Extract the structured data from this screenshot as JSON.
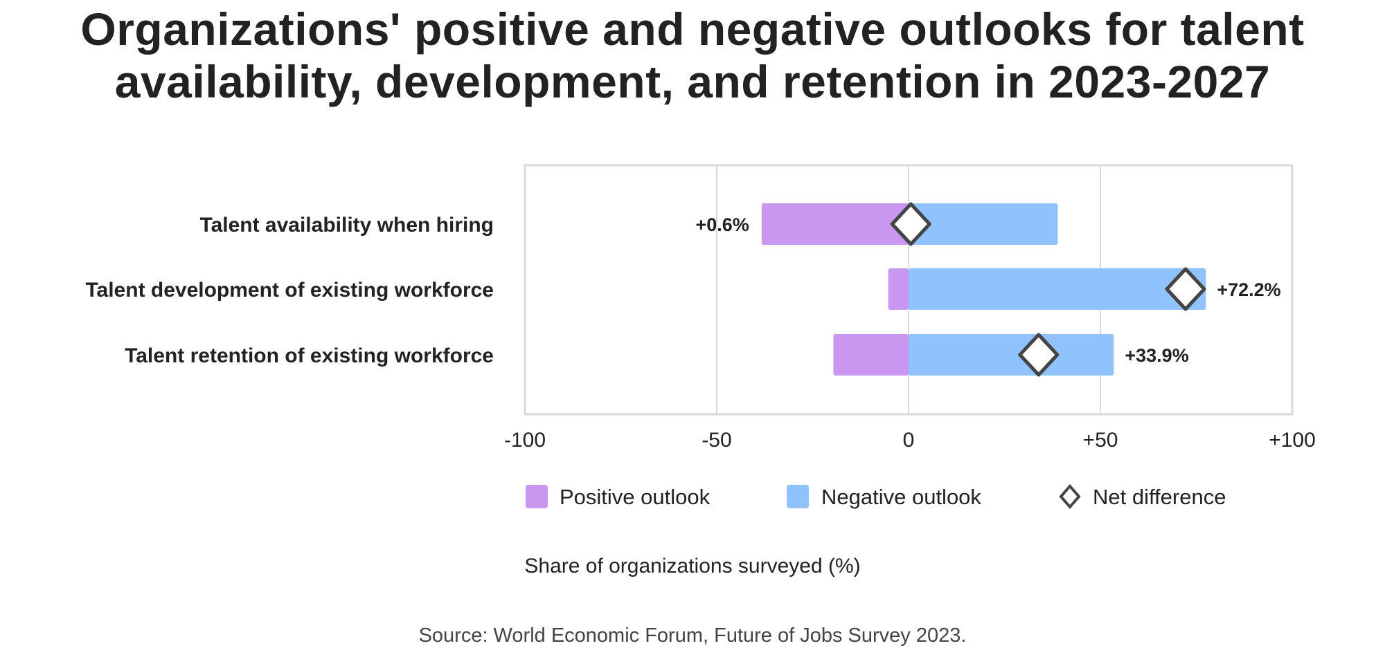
{
  "chart_data": {
    "type": "bar",
    "title": "Organizations' positive and negative outlooks for talent availability, development, and retention in 2023-2027",
    "categories": [
      "Talent availability when hiring",
      "Talent development of existing workforce",
      "Talent retention of existing workforce"
    ],
    "series": [
      {
        "name": "Positive outlook",
        "values": [
          -38.3,
          -5.3,
          -19.6
        ],
        "color": "#c996f0"
      },
      {
        "name": "Negative outlook",
        "values": [
          38.9,
          77.5,
          53.5
        ],
        "color": "#90c3fd"
      },
      {
        "name": "Net difference",
        "values": [
          0.6,
          72.2,
          33.9
        ],
        "marker": "diamond"
      }
    ],
    "data_labels": [
      "+0.6%",
      "+72.2%",
      "+33.9%"
    ],
    "xlim": [
      -100,
      100
    ],
    "xticks": [
      -100,
      -50,
      0,
      50,
      100
    ],
    "xtick_labels": [
      "-100",
      "-50",
      "0",
      "+50",
      "+100"
    ],
    "xlabel": "Share of organizations surveyed (%)",
    "grid": true,
    "legend": "bottom",
    "source": "Source: World Economic Forum, Future of Jobs Survey 2023."
  }
}
